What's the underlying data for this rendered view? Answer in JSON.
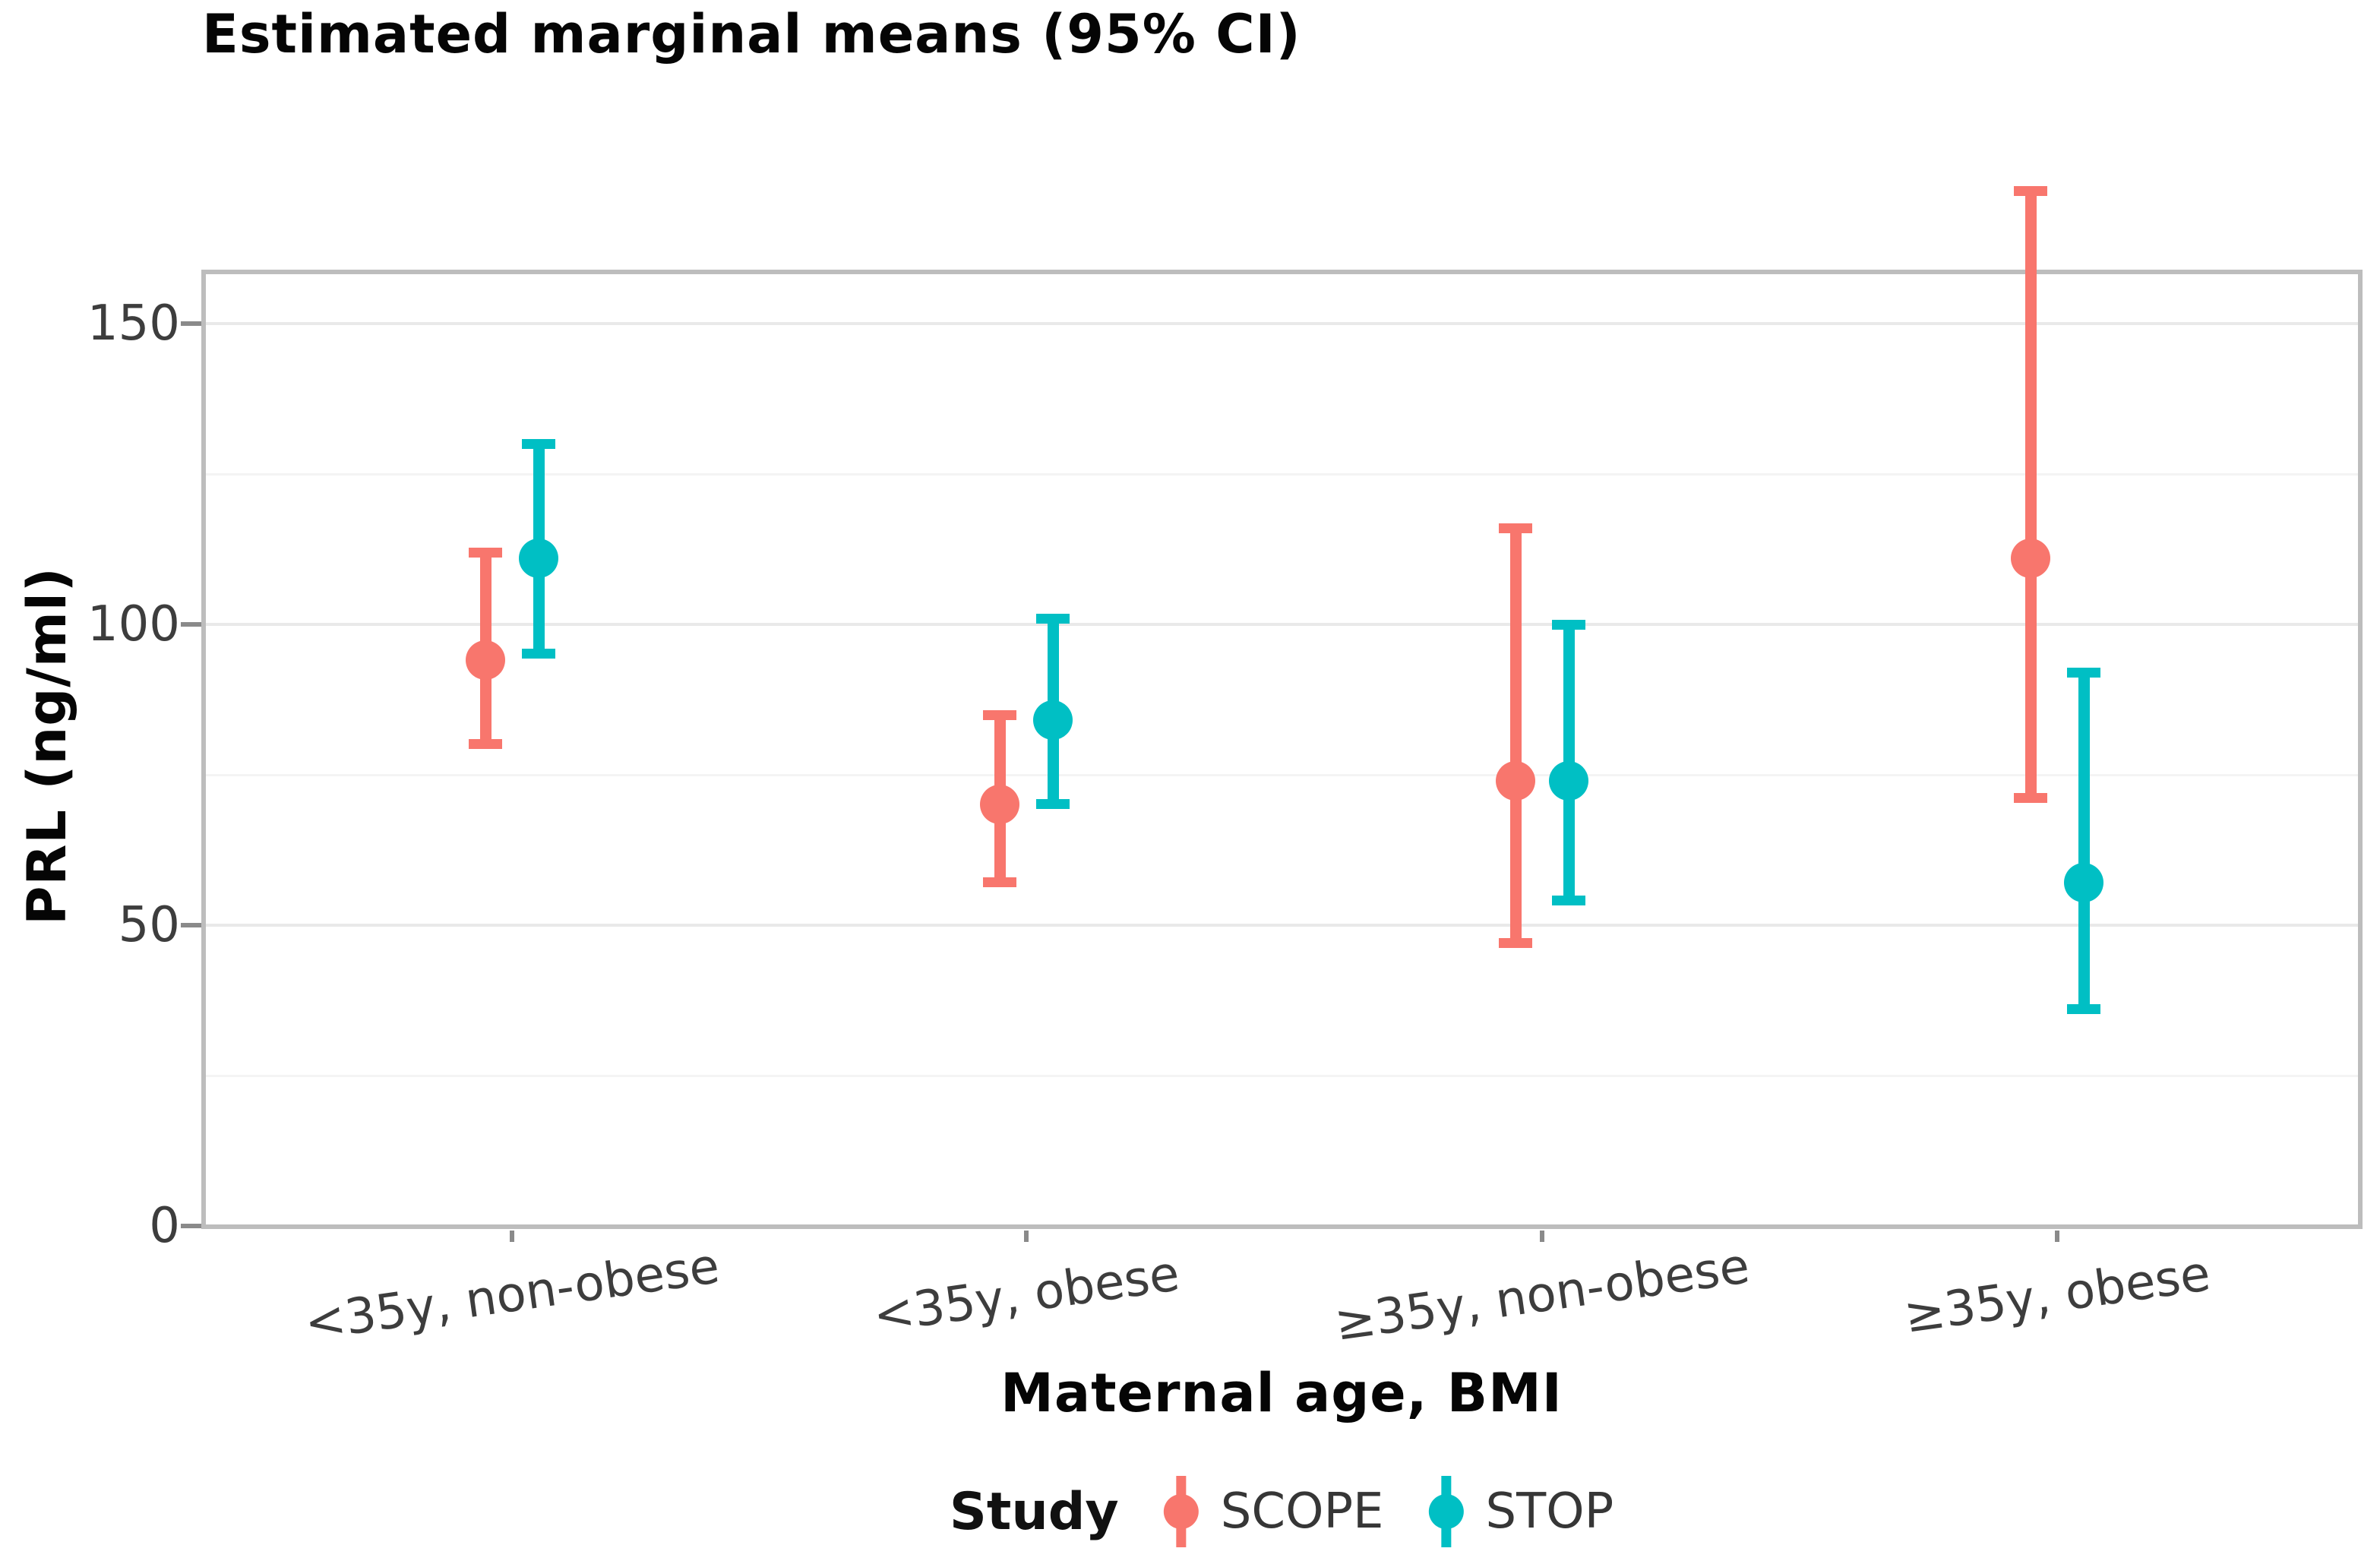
{
  "figure": {
    "title": "Estimated marginal means (95% CI)"
  },
  "axes": {
    "x_title": "Maternal age, BMI",
    "y_title": "PRL (ng/ml)",
    "y_ticks": [
      0,
      50,
      100,
      150
    ],
    "y_minor_ticks": [
      25,
      75,
      125,
      175
    ]
  },
  "legend": {
    "title": "Study",
    "items": [
      {
        "label": "SCOPE",
        "color": "#F8766D"
      },
      {
        "label": "STOP",
        "color": "#00BFC4"
      }
    ]
  },
  "chart_data": {
    "type": "scatter",
    "subtype": "pointrange with 95% CI error bars, dodged by study",
    "title": "Estimated marginal means (95% CI)",
    "xlabel": "Maternal age, BMI",
    "ylabel": "PRL (ng/ml)",
    "categories": [
      "<35y, non-obese",
      "<35y, obese",
      "≥35y, non-obese",
      "≥35y, obese"
    ],
    "series": [
      {
        "name": "SCOPE",
        "color": "#F8766D",
        "means": [
          94,
          70,
          74,
          111
        ],
        "ci_lower": [
          80,
          57,
          47,
          71
        ],
        "ci_upper": [
          112,
          85,
          116,
          172
        ]
      },
      {
        "name": "STOP",
        "color": "#00BFC4",
        "means": [
          111,
          84,
          74,
          57
        ],
        "ci_lower": [
          95,
          70,
          54,
          36
        ],
        "ci_upper": [
          130,
          101,
          100,
          92
        ]
      }
    ],
    "ylim": [
      0,
      158
    ],
    "y_ticks": [
      0,
      50,
      100,
      150
    ],
    "y_minor_ticks": [
      25,
      75,
      125,
      175
    ],
    "grid": "horizontal major and minor gridlines only",
    "legend_position": "bottom"
  }
}
